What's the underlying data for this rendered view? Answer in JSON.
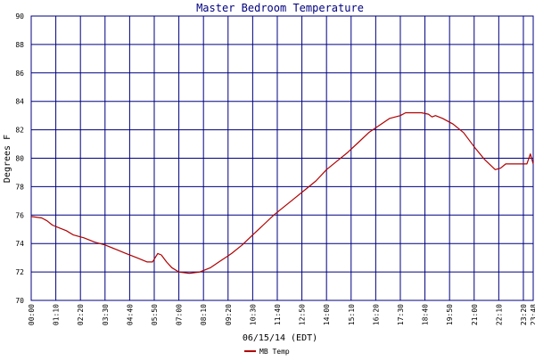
{
  "chart_data": {
    "type": "line",
    "title": "Master Bedroom Temperature",
    "xlabel": "06/15/14 (EDT)",
    "ylabel": "Degrees F",
    "ylim": [
      70,
      90
    ],
    "yticks": [
      70,
      72,
      74,
      76,
      78,
      80,
      82,
      84,
      86,
      88,
      90
    ],
    "xlim": [
      "00:00",
      "23:48"
    ],
    "xticks": [
      "00:00",
      "01:10",
      "02:20",
      "03:30",
      "04:40",
      "05:50",
      "07:00",
      "08:10",
      "09:20",
      "10:30",
      "11:40",
      "12:50",
      "14:00",
      "15:10",
      "16:20",
      "17:30",
      "18:40",
      "19:50",
      "21:00",
      "22:10",
      "23:20",
      "23:48"
    ],
    "grid": true,
    "legend_position": "bottom-left",
    "colors": {
      "grid": "#000080",
      "series": "#b00000",
      "title": "#000080",
      "background": "#ffffff"
    },
    "series": [
      {
        "name": "MB Temp",
        "x": [
          "00:00",
          "00:30",
          "00:45",
          "01:00",
          "01:20",
          "01:40",
          "02:00",
          "02:30",
          "03:00",
          "03:30",
          "04:00",
          "04:30",
          "05:00",
          "05:30",
          "05:45",
          "06:00",
          "06:10",
          "06:25",
          "06:40",
          "07:00",
          "07:30",
          "08:00",
          "08:30",
          "09:00",
          "09:30",
          "10:00",
          "10:30",
          "11:00",
          "11:30",
          "12:00",
          "12:30",
          "13:00",
          "13:30",
          "14:00",
          "14:30",
          "15:00",
          "15:30",
          "16:00",
          "16:30",
          "17:00",
          "17:30",
          "17:45",
          "18:00",
          "18:30",
          "18:50",
          "19:00",
          "19:10",
          "19:30",
          "20:00",
          "20:30",
          "21:00",
          "21:30",
          "22:00",
          "22:15",
          "22:30",
          "23:00",
          "23:30",
          "23:40",
          "23:48"
        ],
        "y": [
          75.9,
          75.8,
          75.6,
          75.3,
          75.1,
          74.9,
          74.6,
          74.4,
          74.1,
          73.9,
          73.6,
          73.3,
          73.0,
          72.7,
          72.7,
          73.3,
          73.2,
          72.7,
          72.3,
          72.0,
          71.9,
          72.0,
          72.3,
          72.8,
          73.3,
          73.9,
          74.6,
          75.3,
          76.0,
          76.6,
          77.2,
          77.8,
          78.4,
          79.2,
          79.8,
          80.4,
          81.1,
          81.8,
          82.3,
          82.8,
          83.0,
          83.2,
          83.2,
          83.2,
          83.1,
          82.9,
          83.0,
          82.8,
          82.4,
          81.8,
          80.8,
          79.9,
          79.2,
          79.3,
          79.6,
          79.6,
          79.6,
          80.3,
          79.6
        ]
      }
    ]
  }
}
